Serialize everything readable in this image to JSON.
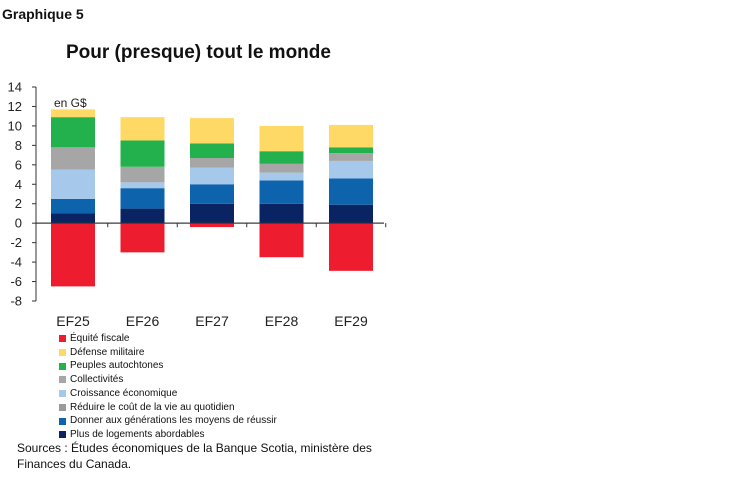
{
  "figure_label": "Graphique 5",
  "source": "Sources : Études économiques de la Banque Scotia, ministère des Finances du Canada.",
  "chart_data": {
    "type": "bar",
    "stacked": true,
    "title": "Pour (presque) tout le monde",
    "unit_label": "en G$",
    "xlabel": "",
    "ylabel": "",
    "ylim": [
      -8,
      14
    ],
    "yticks": [
      -8,
      -6,
      -4,
      -2,
      0,
      2,
      4,
      6,
      8,
      10,
      12,
      14
    ],
    "grid": false,
    "legend_position": "bottom",
    "categories": [
      "EF25",
      "EF26",
      "EF27",
      "EF28",
      "EF29"
    ],
    "series": [
      {
        "name": "Plus de logements abordables",
        "color": "#0a2463",
        "values": [
          1.0,
          1.5,
          2.0,
          2.0,
          1.9
        ]
      },
      {
        "name": "Donner aux générations les moyens de réussir",
        "color": "#0e63ad",
        "values": [
          1.5,
          2.1,
          2.0,
          2.4,
          2.7
        ]
      },
      {
        "name": "Réduire le coût de la vie au quotidien",
        "color": "#9a9a9a",
        "values": [
          0.0,
          0.0,
          0.0,
          0.0,
          0.0
        ]
      },
      {
        "name": "Croissance économique",
        "color": "#a6c8ea",
        "values": [
          3.0,
          0.6,
          1.7,
          0.8,
          1.8
        ]
      },
      {
        "name": "Collectivités",
        "color": "#a6a6a6",
        "values": [
          2.3,
          1.6,
          1.0,
          0.9,
          0.8
        ]
      },
      {
        "name": "Peuples autochtones",
        "color": "#22b14c",
        "values": [
          3.1,
          2.7,
          1.5,
          1.3,
          0.6
        ]
      },
      {
        "name": "Défense militaire",
        "color": "#ffd966",
        "values": [
          0.8,
          2.4,
          2.6,
          2.6,
          2.3
        ]
      },
      {
        "name": "Équité fiscale",
        "color": "#ed1c2e",
        "values": [
          -6.5,
          -3.0,
          -0.4,
          -3.5,
          -4.9
        ]
      }
    ],
    "legend_order": [
      "Équité fiscale",
      "Défense militaire",
      "Peuples autochtones",
      "Collectivités",
      "Croissance économique",
      "Réduire le coût de la vie au quotidien",
      "Donner aux générations les moyens de réussir",
      "Plus de logements abordables"
    ]
  }
}
